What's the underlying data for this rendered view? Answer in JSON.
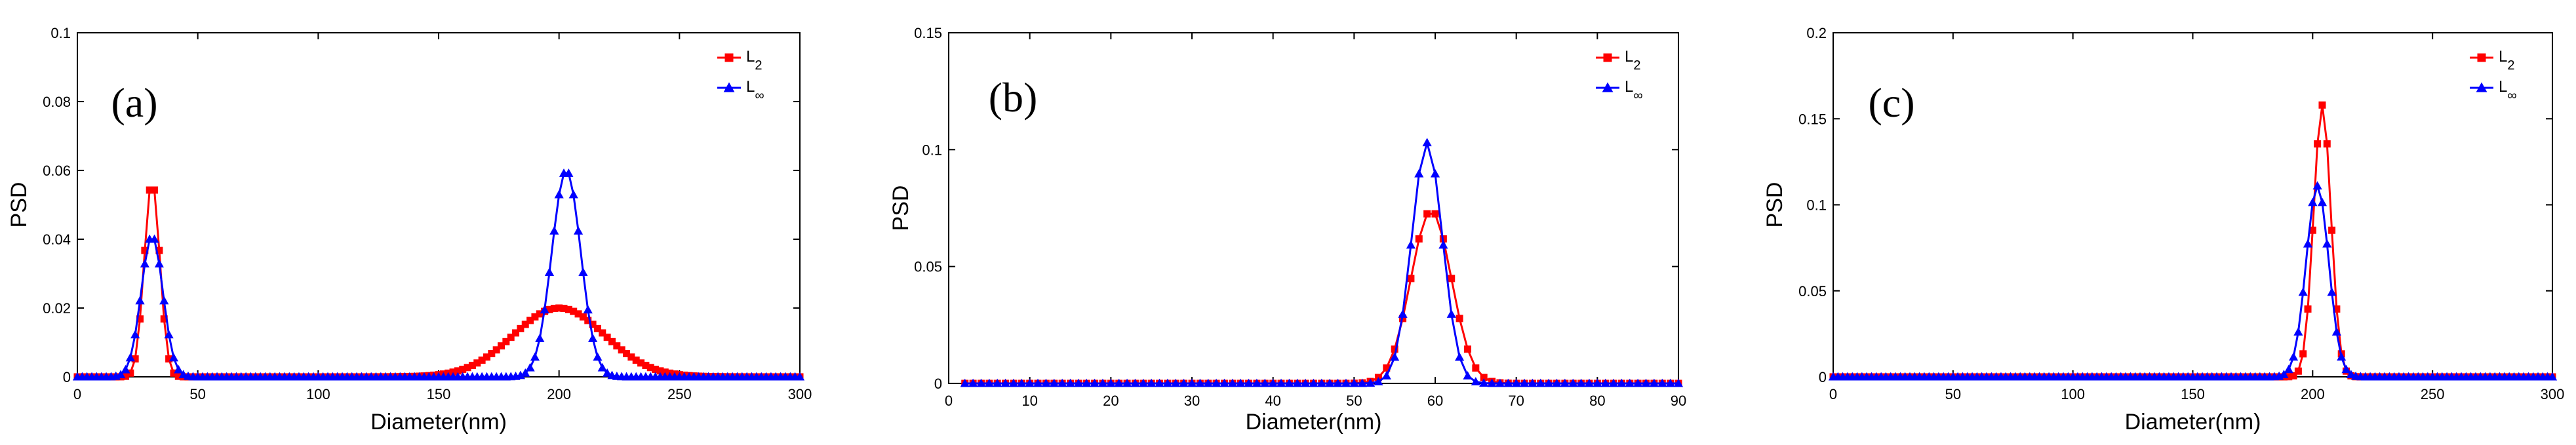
{
  "chart_data": [
    {
      "type": "line",
      "panel_label": "(a)",
      "xlabel": "Diameter(nm)",
      "ylabel": "PSD",
      "xlim": [
        0,
        300
      ],
      "ylim": [
        0,
        0.1
      ],
      "xticks": [
        0,
        50,
        100,
        150,
        200,
        250,
        300
      ],
      "yticks": [
        0,
        0.02,
        0.04,
        0.06,
        0.08,
        0.1
      ],
      "xtick_labels": [
        "0",
        "50",
        "100",
        "150",
        "200",
        "250",
        "300"
      ],
      "ytick_labels": [
        "0",
        "0.02",
        "0.04",
        "0.06",
        "0.08",
        "0.1"
      ],
      "legend_position": "top-right",
      "series": [
        {
          "legend_main": "L",
          "legend_sub": "2",
          "color": "#ff0000",
          "marker": "square",
          "x_start": 0,
          "x_step": 2,
          "peaks": [
            {
              "center": 31,
              "height": 0.057,
              "sigma": 3.2
            },
            {
              "center": 200,
              "height": 0.02,
              "sigma": 19
            }
          ]
        },
        {
          "legend_main": "L",
          "legend_sub": "∞",
          "color": "#0000ff",
          "marker": "triangle",
          "x_start": 0,
          "x_step": 2,
          "peaks": [
            {
              "center": 31,
              "height": 0.041,
              "sigma": 4.5
            },
            {
              "center": 203,
              "height": 0.06,
              "sigma": 6
            }
          ]
        }
      ]
    },
    {
      "type": "line",
      "panel_label": "(b)",
      "xlabel": "Diameter(nm)",
      "ylabel": "PSD",
      "xlim": [
        0,
        90
      ],
      "ylim": [
        0,
        0.15
      ],
      "xticks": [
        0,
        10,
        20,
        30,
        40,
        50,
        60,
        70,
        80,
        90
      ],
      "yticks": [
        0,
        0.05,
        0.1,
        0.15
      ],
      "xtick_labels": [
        "0",
        "10",
        "20",
        "30",
        "40",
        "50",
        "60",
        "70",
        "80",
        "90"
      ],
      "ytick_labels": [
        "0",
        "0.05",
        "0.1",
        "0.15"
      ],
      "legend_position": "top-right",
      "series": [
        {
          "legend_main": "L",
          "legend_sub": "2",
          "color": "#ff0000",
          "marker": "square",
          "x_start": 2,
          "x_step": 1,
          "peaks": [
            {
              "center": 59.5,
              "height": 0.074,
              "sigma": 2.5
            }
          ]
        },
        {
          "legend_main": "L",
          "legend_sub": "∞",
          "color": "#0000ff",
          "marker": "triangle",
          "x_start": 2,
          "x_step": 1,
          "peaks": [
            {
              "center": 59,
              "height": 0.103,
              "sigma": 1.9
            }
          ]
        }
      ]
    },
    {
      "type": "line",
      "panel_label": "(c)",
      "xlabel": "Diameter(nm)",
      "ylabel": "PSD",
      "xlim": [
        0,
        300
      ],
      "ylim": [
        0,
        0.2
      ],
      "xticks": [
        0,
        50,
        100,
        150,
        200,
        250,
        300
      ],
      "yticks": [
        0,
        0.05,
        0.1,
        0.15,
        0.2
      ],
      "xtick_labels": [
        "0",
        "50",
        "100",
        "150",
        "200",
        "250",
        "300"
      ],
      "ytick_labels": [
        "0",
        "0.05",
        "0.1",
        "0.15",
        "0.2"
      ],
      "legend_position": "top-right",
      "series": [
        {
          "legend_main": "L",
          "legend_sub": "2",
          "color": "#ff0000",
          "marker": "square",
          "x_start": 0,
          "x_step": 2,
          "peaks": [
            {
              "center": 204,
              "height": 0.158,
              "sigma": 3.6
            }
          ]
        },
        {
          "legend_main": "L",
          "legend_sub": "∞",
          "color": "#0000ff",
          "marker": "triangle",
          "x_start": 0,
          "x_step": 2,
          "peaks": [
            {
              "center": 202,
              "height": 0.111,
              "sigma": 4.7
            }
          ]
        }
      ]
    }
  ]
}
